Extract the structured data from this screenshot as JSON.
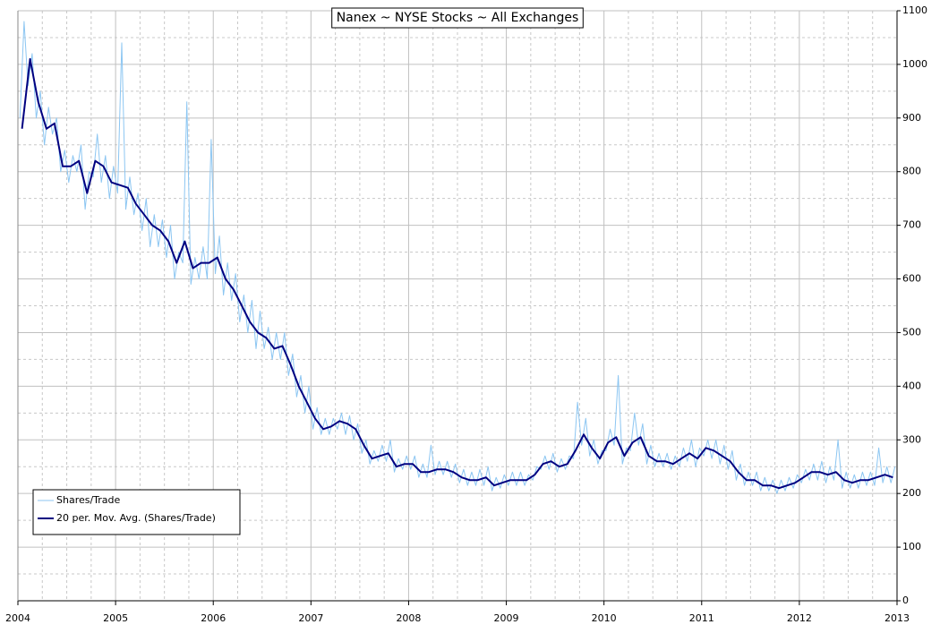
{
  "chart_data": {
    "type": "line",
    "title": "Nanex ~ NYSE Stocks ~ All Exchanges",
    "xlim": [
      2004,
      2013
    ],
    "xticks": [
      2004,
      2005,
      2006,
      2007,
      2008,
      2009,
      2010,
      2011,
      2012,
      2013
    ],
    "minor_xticks": [
      2004.25,
      2004.5,
      2004.75,
      2005.25,
      2005.5,
      2005.75,
      2006.25,
      2006.5,
      2006.75,
      2007.25,
      2007.5,
      2007.75,
      2008.25,
      2008.5,
      2008.75,
      2009.25,
      2009.5,
      2009.75,
      2010.25,
      2010.5,
      2010.75,
      2011.25,
      2011.5,
      2011.75,
      2012.25,
      2012.5,
      2012.75
    ],
    "ylim": [
      0,
      1100
    ],
    "yticks": [
      0,
      100,
      200,
      300,
      400,
      500,
      600,
      700,
      800,
      900,
      1000,
      1100
    ],
    "minor_yticks": [
      50,
      150,
      250,
      350,
      450,
      550,
      650,
      750,
      850,
      950,
      1050
    ],
    "grid": true,
    "y_axis_side": "right",
    "legend": "lower left",
    "series": [
      {
        "name": "Shares/Trade",
        "color": "#8cc6f2",
        "width": 1,
        "x": [
          2004.021,
          2004.063,
          2004.104,
          2004.146,
          2004.188,
          2004.229,
          2004.271,
          2004.313,
          2004.354,
          2004.396,
          2004.438,
          2004.479,
          2004.521,
          2004.563,
          2004.604,
          2004.646,
          2004.688,
          2004.729,
          2004.771,
          2004.813,
          2004.854,
          2004.896,
          2004.938,
          2004.979,
          2005.021,
          2005.063,
          2005.104,
          2005.146,
          2005.188,
          2005.229,
          2005.271,
          2005.313,
          2005.354,
          2005.396,
          2005.438,
          2005.479,
          2005.521,
          2005.563,
          2005.604,
          2005.646,
          2005.688,
          2005.729,
          2005.771,
          2005.813,
          2005.854,
          2005.896,
          2005.938,
          2005.979,
          2006.021,
          2006.063,
          2006.104,
          2006.146,
          2006.188,
          2006.229,
          2006.271,
          2006.313,
          2006.354,
          2006.396,
          2006.438,
          2006.479,
          2006.521,
          2006.563,
          2006.604,
          2006.646,
          2006.688,
          2006.729,
          2006.771,
          2006.813,
          2006.854,
          2006.896,
          2006.938,
          2006.979,
          2007.021,
          2007.063,
          2007.104,
          2007.146,
          2007.188,
          2007.229,
          2007.271,
          2007.313,
          2007.354,
          2007.396,
          2007.438,
          2007.479,
          2007.521,
          2007.563,
          2007.604,
          2007.646,
          2007.688,
          2007.729,
          2007.771,
          2007.813,
          2007.854,
          2007.896,
          2007.938,
          2007.979,
          2008.021,
          2008.063,
          2008.104,
          2008.146,
          2008.188,
          2008.229,
          2008.271,
          2008.313,
          2008.354,
          2008.396,
          2008.438,
          2008.479,
          2008.521,
          2008.563,
          2008.604,
          2008.646,
          2008.688,
          2008.729,
          2008.771,
          2008.813,
          2008.854,
          2008.896,
          2008.938,
          2008.979,
          2009.021,
          2009.063,
          2009.104,
          2009.146,
          2009.188,
          2009.229,
          2009.271,
          2009.313,
          2009.354,
          2009.396,
          2009.438,
          2009.479,
          2009.521,
          2009.563,
          2009.604,
          2009.646,
          2009.688,
          2009.729,
          2009.771,
          2009.813,
          2009.854,
          2009.896,
          2009.938,
          2009.979,
          2010.021,
          2010.063,
          2010.104,
          2010.146,
          2010.188,
          2010.229,
          2010.271,
          2010.313,
          2010.354,
          2010.396,
          2010.438,
          2010.479,
          2010.521,
          2010.563,
          2010.604,
          2010.646,
          2010.688,
          2010.729,
          2010.771,
          2010.813,
          2010.854,
          2010.896,
          2010.938,
          2010.979,
          2011.021,
          2011.063,
          2011.104,
          2011.146,
          2011.188,
          2011.229,
          2011.271,
          2011.313,
          2011.354,
          2011.396,
          2011.438,
          2011.479,
          2011.521,
          2011.563,
          2011.604,
          2011.646,
          2011.688,
          2011.729,
          2011.771,
          2011.813,
          2011.854,
          2011.896,
          2011.938,
          2011.979,
          2012.021,
          2012.063,
          2012.104,
          2012.146,
          2012.188,
          2012.229,
          2012.271,
          2012.313,
          2012.354,
          2012.396,
          2012.438,
          2012.479,
          2012.521,
          2012.563,
          2012.604,
          2012.646,
          2012.688,
          2012.729,
          2012.771,
          2012.813,
          2012.854,
          2012.896,
          2012.938,
          2012.979
        ],
        "values": [
          900,
          1080,
          960,
          1020,
          900,
          950,
          850,
          920,
          870,
          900,
          800,
          840,
          780,
          830,
          800,
          850,
          730,
          800,
          790,
          870,
          780,
          830,
          750,
          810,
          760,
          1040,
          730,
          790,
          720,
          760,
          690,
          750,
          660,
          720,
          660,
          710,
          640,
          700,
          600,
          650,
          630,
          930,
          590,
          640,
          600,
          660,
          600,
          860,
          610,
          680,
          570,
          630,
          560,
          610,
          520,
          570,
          500,
          560,
          470,
          540,
          470,
          510,
          450,
          500,
          450,
          500,
          420,
          460,
          380,
          420,
          350,
          400,
          320,
          360,
          310,
          340,
          310,
          340,
          320,
          350,
          310,
          345,
          300,
          330,
          275,
          300,
          255,
          280,
          260,
          290,
          260,
          300,
          240,
          265,
          245,
          270,
          245,
          270,
          230,
          255,
          230,
          290,
          235,
          260,
          235,
          260,
          230,
          255,
          220,
          245,
          215,
          240,
          215,
          245,
          215,
          250,
          205,
          230,
          210,
          235,
          215,
          240,
          215,
          240,
          215,
          235,
          225,
          250,
          245,
          270,
          245,
          275,
          240,
          265,
          245,
          270,
          265,
          370,
          290,
          340,
          270,
          300,
          255,
          280,
          280,
          320,
          290,
          420,
          255,
          285,
          280,
          350,
          290,
          330,
          255,
          290,
          250,
          275,
          250,
          275,
          245,
          270,
          250,
          285,
          260,
          300,
          250,
          285,
          270,
          300,
          265,
          300,
          255,
          290,
          245,
          280,
          225,
          255,
          215,
          240,
          215,
          240,
          205,
          230,
          205,
          225,
          200,
          225,
          205,
          230,
          210,
          235,
          220,
          245,
          225,
          255,
          225,
          260,
          220,
          250,
          225,
          300,
          210,
          240,
          210,
          235,
          210,
          240,
          215,
          240,
          215,
          285,
          220,
          250,
          220,
          250
        ]
      },
      {
        "name": "20 per. Mov. Avg. (Shares/Trade)",
        "color": "#000080",
        "width": 2,
        "x": [
          2004.042,
          2004.125,
          2004.208,
          2004.292,
          2004.375,
          2004.458,
          2004.542,
          2004.625,
          2004.708,
          2004.792,
          2004.875,
          2004.958,
          2005.042,
          2005.125,
          2005.208,
          2005.292,
          2005.375,
          2005.458,
          2005.542,
          2005.625,
          2005.708,
          2005.792,
          2005.875,
          2005.958,
          2006.042,
          2006.125,
          2006.208,
          2006.292,
          2006.375,
          2006.458,
          2006.542,
          2006.625,
          2006.708,
          2006.792,
          2006.875,
          2006.958,
          2007.042,
          2007.125,
          2007.208,
          2007.292,
          2007.375,
          2007.458,
          2007.542,
          2007.625,
          2007.708,
          2007.792,
          2007.875,
          2007.958,
          2008.042,
          2008.125,
          2008.208,
          2008.292,
          2008.375,
          2008.458,
          2008.542,
          2008.625,
          2008.708,
          2008.792,
          2008.875,
          2008.958,
          2009.042,
          2009.125,
          2009.208,
          2009.292,
          2009.375,
          2009.458,
          2009.542,
          2009.625,
          2009.708,
          2009.792,
          2009.875,
          2009.958,
          2010.042,
          2010.125,
          2010.208,
          2010.292,
          2010.375,
          2010.458,
          2010.542,
          2010.625,
          2010.708,
          2010.792,
          2010.875,
          2010.958,
          2011.042,
          2011.125,
          2011.208,
          2011.292,
          2011.375,
          2011.458,
          2011.542,
          2011.625,
          2011.708,
          2011.792,
          2011.875,
          2011.958,
          2012.042,
          2012.125,
          2012.208,
          2012.292,
          2012.375,
          2012.458,
          2012.542,
          2012.625,
          2012.708,
          2012.792,
          2012.875,
          2012.958
        ],
        "values": [
          880,
          1010,
          930,
          880,
          890,
          810,
          810,
          820,
          760,
          820,
          810,
          780,
          775,
          770,
          740,
          720,
          700,
          690,
          670,
          630,
          670,
          620,
          630,
          630,
          640,
          600,
          580,
          550,
          520,
          500,
          490,
          470,
          475,
          440,
          400,
          370,
          340,
          320,
          325,
          335,
          330,
          320,
          290,
          265,
          270,
          275,
          250,
          255,
          255,
          240,
          240,
          245,
          245,
          240,
          230,
          225,
          225,
          230,
          215,
          220,
          225,
          225,
          225,
          235,
          255,
          260,
          250,
          255,
          280,
          310,
          285,
          265,
          295,
          305,
          270,
          295,
          305,
          270,
          260,
          260,
          255,
          265,
          275,
          265,
          285,
          280,
          270,
          260,
          240,
          225,
          225,
          215,
          215,
          210,
          215,
          220,
          230,
          240,
          240,
          235,
          240,
          225,
          220,
          225,
          225,
          230,
          235,
          230
        ]
      }
    ]
  }
}
